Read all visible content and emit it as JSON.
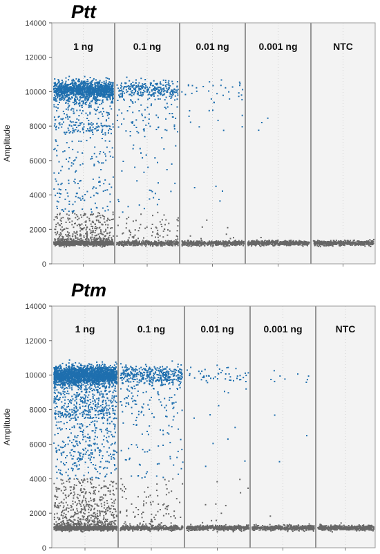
{
  "chart_data": [
    {
      "type": "scatter",
      "title": "Ptt",
      "ylabel": "Amplitude",
      "xlabel": "",
      "ylim": [
        0,
        14000
      ],
      "yticks": [
        0,
        2000,
        4000,
        6000,
        8000,
        10000,
        12000,
        14000
      ],
      "grid": false,
      "categories": [
        "1 ng",
        "0.1 ng",
        "0.01 ng",
        "0.001 ng",
        "NTC"
      ],
      "point_counts": {
        "positive": [
          1600,
          380,
          45,
          3,
          0
        ],
        "negative": [
          900,
          420,
          480,
          480,
          480
        ]
      },
      "clusters": {
        "positive_mean": 10100,
        "negative_mean": 1200,
        "intermediate_grey_max": 3000
      },
      "colors": {
        "positive": "#1f6fae",
        "negative": "#666666",
        "background": "#f3f3f3",
        "divider": "#555555"
      }
    },
    {
      "type": "scatter",
      "title": "Ptm",
      "ylabel": "Amplitude",
      "xlabel": "",
      "ylim": [
        0,
        14000
      ],
      "yticks": [
        0,
        2000,
        4000,
        6000,
        8000,
        10000,
        12000,
        14000
      ],
      "grid": false,
      "categories": [
        "1 ng",
        "0.1 ng",
        "0.01 ng",
        "0.001 ng",
        "NTC"
      ],
      "point_counts": {
        "positive": [
          2600,
          520,
          60,
          12,
          0
        ],
        "negative": [
          1100,
          420,
          480,
          480,
          480
        ]
      },
      "clusters": {
        "positive_mean": 10000,
        "negative_mean": 1150,
        "intermediate_grey_max": 4000
      },
      "colors": {
        "positive": "#1f6fae",
        "negative": "#666666",
        "background": "#f3f3f3",
        "divider": "#555555"
      }
    }
  ]
}
